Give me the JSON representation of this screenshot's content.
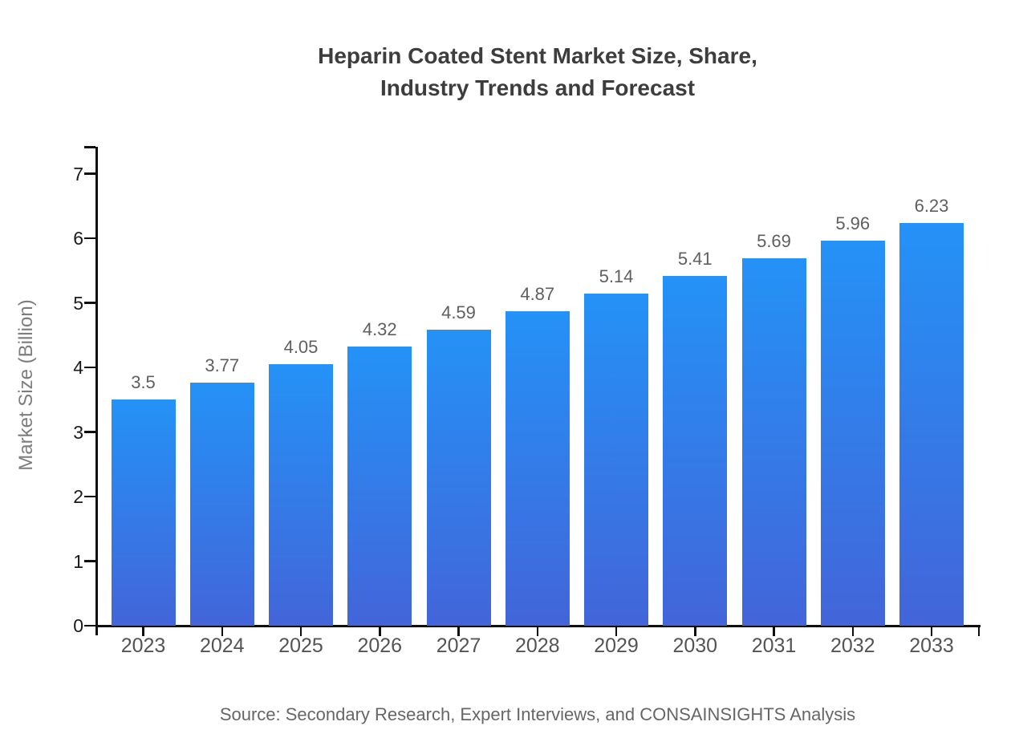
{
  "page": {
    "background": "#ffffff"
  },
  "chart_data": {
    "type": "bar",
    "title": "Heparin Coated Stent Market Size, Share, Industry Trends and Forecast",
    "title_lines": [
      "Heparin Coated Stent Market Size, Share,",
      "Industry Trends and Forecast"
    ],
    "xlabel": "",
    "ylabel": "Market Size (Billion)",
    "categories": [
      "2023",
      "2024",
      "2025",
      "2026",
      "2027",
      "2028",
      "2029",
      "2030",
      "2031",
      "2032",
      "2033"
    ],
    "values": [
      3.5,
      3.77,
      4.05,
      4.32,
      4.59,
      4.87,
      5.14,
      5.41,
      5.69,
      5.96,
      6.23
    ],
    "value_labels": [
      "3.5",
      "3.77",
      "4.05",
      "4.32",
      "4.59",
      "4.87",
      "5.14",
      "5.41",
      "5.69",
      "5.96",
      "6.23"
    ],
    "y_ticks": [
      0,
      1,
      2,
      3,
      4,
      5,
      6,
      7
    ],
    "ylim": [
      0,
      7.4
    ],
    "grid": false,
    "legend": "none",
    "source_note": "Source: Secondary Research, Expert Interviews, and CONSAINSIGHTS Analysis"
  },
  "colors": {
    "bar_gradient_top": "#2492f7",
    "bar_gradient_bottom": "#4365d9",
    "title": "#3d3d3d",
    "axis": "#0f0f0f",
    "y_tick_label": "#1a1a1a",
    "x_tick_label": "#545454",
    "value_label": "#5f5f5f",
    "y_axis_title": "#7d7d7d",
    "source": "#666666"
  }
}
